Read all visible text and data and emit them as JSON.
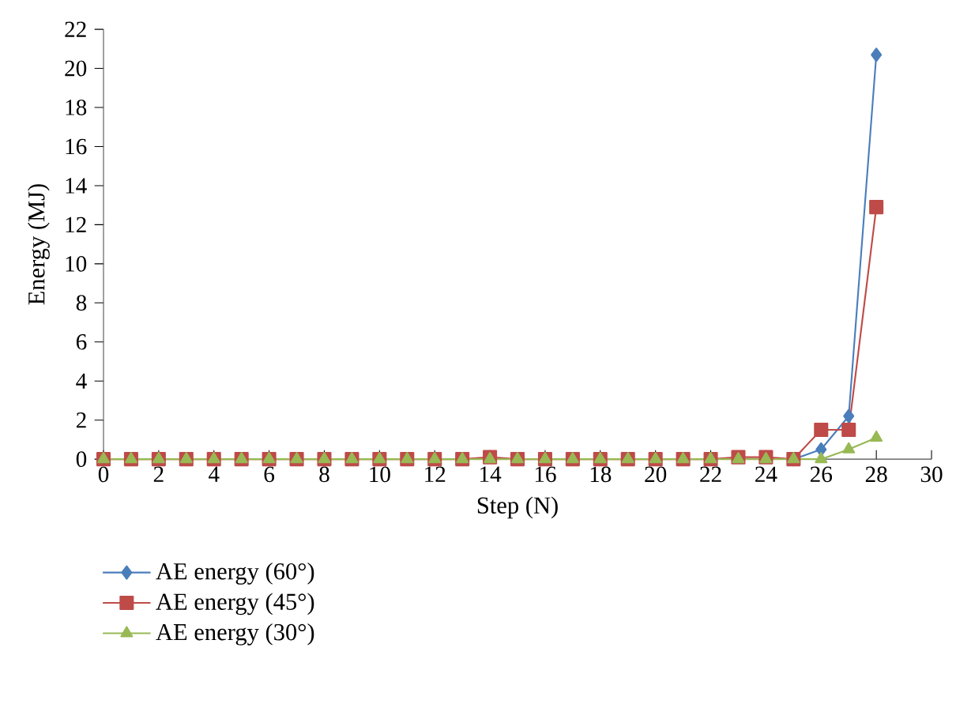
{
  "chart_data": {
    "type": "line",
    "xlabel": "Step (N)",
    "ylabel": "Energy (MJ)",
    "x": [
      0,
      1,
      2,
      3,
      4,
      5,
      6,
      7,
      8,
      9,
      10,
      11,
      12,
      13,
      14,
      15,
      16,
      17,
      18,
      19,
      20,
      21,
      22,
      23,
      24,
      25,
      26,
      27,
      28
    ],
    "series": [
      {
        "name": "AE energy (60°)",
        "color": "#4a7ebb",
        "marker": "diamond",
        "values": [
          null,
          null,
          null,
          null,
          null,
          null,
          null,
          null,
          null,
          null,
          null,
          null,
          null,
          null,
          null,
          null,
          null,
          null,
          null,
          null,
          null,
          null,
          null,
          null,
          null,
          0,
          0.5,
          2.2,
          20.7
        ]
      },
      {
        "name": "AE energy (45°)",
        "color": "#be4b48",
        "marker": "square",
        "values": [
          0,
          0,
          0,
          0,
          0,
          0,
          0,
          0,
          0,
          0,
          0,
          0,
          0,
          0,
          0.1,
          0,
          0,
          0,
          0,
          0,
          0,
          0,
          0,
          0.1,
          0.1,
          0,
          1.5,
          1.5,
          12.9
        ]
      },
      {
        "name": "AE energy (30°)",
        "color": "#98b954",
        "marker": "triangle",
        "values": [
          0,
          0,
          0,
          0,
          0,
          0,
          0,
          0,
          0,
          0,
          0,
          0,
          0,
          0,
          0,
          0,
          0,
          0,
          0,
          0,
          0,
          0,
          0,
          0,
          0,
          0,
          0,
          0.5,
          1.1
        ]
      }
    ],
    "xlim": [
      0,
      30
    ],
    "xticks": [
      0,
      2,
      4,
      6,
      8,
      10,
      12,
      14,
      16,
      18,
      20,
      22,
      24,
      26,
      28,
      30
    ],
    "ylim": [
      0,
      22
    ],
    "yticks": [
      0,
      2,
      4,
      6,
      8,
      10,
      12,
      14,
      16,
      18,
      20,
      22
    ],
    "grid": false,
    "legend": "bottom left"
  }
}
